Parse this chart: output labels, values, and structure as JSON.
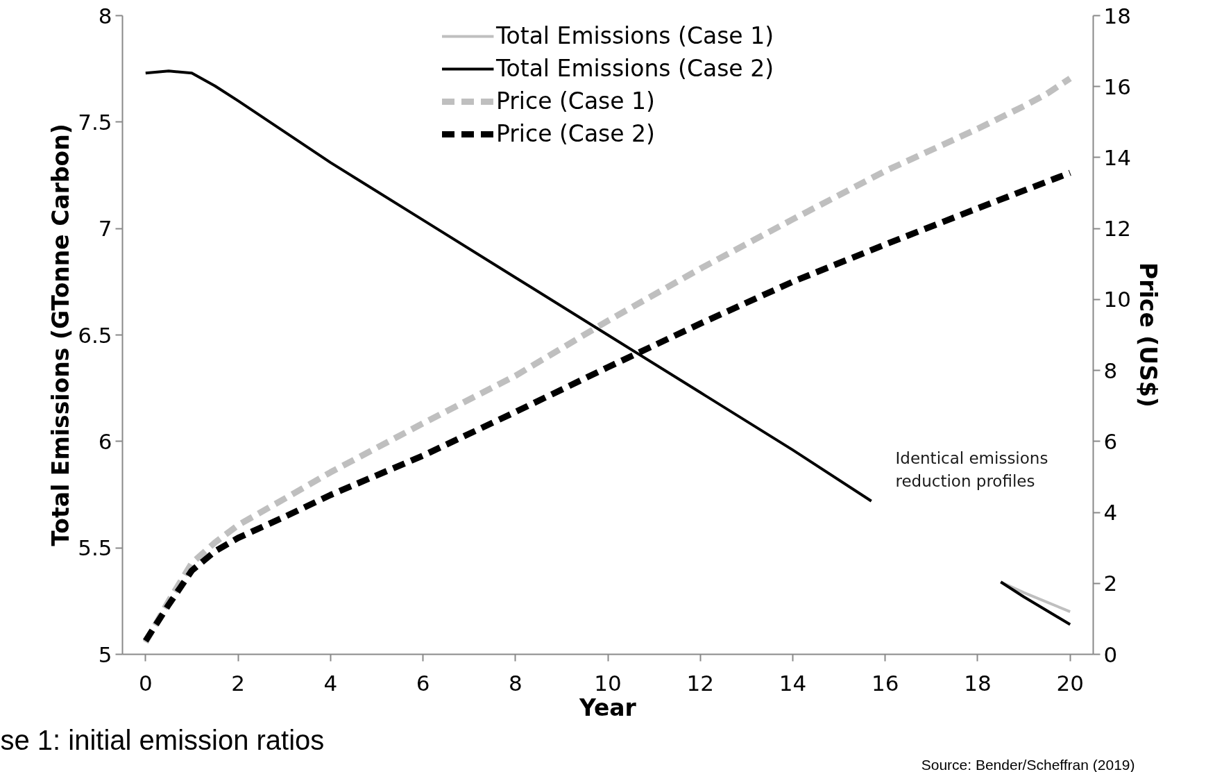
{
  "chart_data": {
    "type": "line",
    "xlabel": "Year",
    "ylabel": "Total Emissions (GTonne Carbon)",
    "y2label": "Price (US$)",
    "xlim": [
      -0.5,
      20.5
    ],
    "xticks": [
      0,
      2,
      4,
      6,
      8,
      10,
      12,
      14,
      16,
      18,
      20
    ],
    "ylim": [
      5,
      8
    ],
    "yticks": [
      5,
      5.5,
      6,
      6.5,
      7,
      7.5,
      8
    ],
    "y2lim": [
      0,
      18
    ],
    "y2ticks": [
      0,
      2,
      4,
      6,
      8,
      10,
      12,
      14,
      16,
      18
    ],
    "grid": false,
    "legend": "top",
    "marker": "none",
    "series": [
      {
        "name": "Total Emissions (Case 1)",
        "color": "#bfbfbf",
        "line_style": "solid",
        "axis": "y",
        "x": [
          18.5,
          19,
          20
        ],
        "values": [
          5.34,
          5.29,
          5.2
        ]
      },
      {
        "name": "Total Emissions (Case 2)",
        "color": "#000000",
        "line_style": "solid",
        "axis": "y",
        "x": [
          0,
          0.5,
          1,
          1.5,
          2,
          4,
          6,
          8,
          10,
          12,
          14,
          15.7,
          16,
          17,
          18,
          18.5,
          19,
          20
        ],
        "values": [
          7.73,
          7.74,
          7.73,
          7.67,
          7.6,
          7.31,
          7.04,
          6.77,
          6.5,
          6.23,
          5.96,
          5.72,
          null,
          null,
          null,
          5.34,
          5.27,
          5.14
        ]
      },
      {
        "name": "Price (Case 1)",
        "color": "#bfbfbf",
        "line_style": "dashed",
        "axis": "y2",
        "x": [
          0,
          0.5,
          1,
          1.5,
          2,
          3,
          4,
          6,
          8,
          10,
          12,
          14,
          16,
          18,
          19,
          19.5,
          20
        ],
        "values": [
          0.34,
          1.5,
          2.57,
          3.15,
          3.64,
          4.38,
          5.13,
          6.51,
          7.85,
          9.4,
          10.87,
          12.26,
          13.62,
          14.81,
          15.45,
          15.8,
          16.23
        ]
      },
      {
        "name": "Price (Case 2)",
        "color": "#000000",
        "line_style": "dashed",
        "axis": "y2",
        "x": [
          0,
          0.5,
          1,
          1.5,
          2,
          3,
          4,
          6,
          8,
          10,
          12,
          14,
          16,
          18,
          20
        ],
        "values": [
          0.38,
          1.4,
          2.36,
          2.9,
          3.28,
          3.87,
          4.49,
          5.6,
          6.83,
          8.09,
          9.32,
          10.5,
          11.55,
          12.57,
          13.57
        ]
      }
    ],
    "annotations": [
      "Identical emissions\nreduction profiles",
      "se 1: initial emission ratios",
      "Source: Bender/Scheffran (2019)"
    ]
  }
}
